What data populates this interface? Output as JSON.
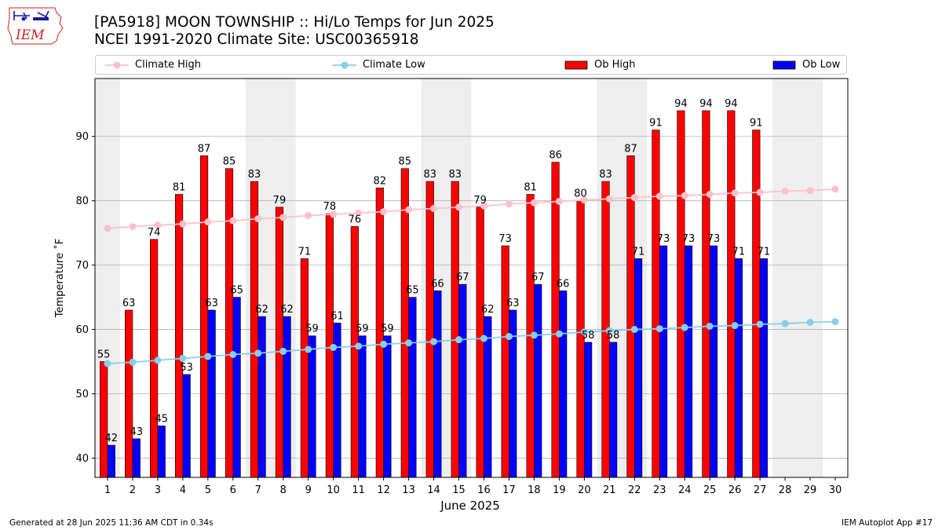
{
  "header": {
    "title_line1": "[PA5918] MOON TOWNSHIP :: Hi/Lo Temps for Jun 2025",
    "title_line2": "NCEI 1991-2020 Climate Site: USC00365918",
    "logo_text": "IEM"
  },
  "footer": {
    "left": "Generated at 28 Jun 2025 11:36 AM CDT in 0.34s",
    "right": "IEM Autoplot App #17"
  },
  "colors": {
    "ob_high": "#ff0000",
    "ob_low": "#0000ff",
    "climate_high": "#ffc0cb",
    "climate_low": "#87ceeb",
    "weekend_shade": "#eeeeee",
    "grid": "#b0b0b0"
  },
  "chart_data": {
    "type": "bar",
    "title": "[PA5918] MOON TOWNSHIP :: Hi/Lo Temps for Jun 2025",
    "xlabel": "June 2025",
    "ylabel": "Temperature ˚F",
    "ylim": [
      37,
      99
    ],
    "yticks": [
      40,
      50,
      60,
      70,
      80,
      90
    ],
    "grid": "horizontal",
    "legend_position": "top",
    "categories": [
      "1",
      "2",
      "3",
      "4",
      "5",
      "6",
      "7",
      "8",
      "9",
      "10",
      "11",
      "12",
      "13",
      "14",
      "15",
      "16",
      "17",
      "18",
      "19",
      "20",
      "21",
      "22",
      "23",
      "24",
      "25",
      "26",
      "27",
      "28",
      "29",
      "30"
    ],
    "weekend_days": [
      1,
      7,
      8,
      14,
      15,
      21,
      22,
      28,
      29
    ],
    "series": [
      {
        "name": "Ob High",
        "kind": "bar",
        "values": [
          55,
          63,
          74,
          81,
          87,
          85,
          83,
          79,
          71,
          78,
          76,
          82,
          85,
          83,
          83,
          79,
          73,
          81,
          86,
          80,
          83,
          87,
          91,
          94,
          94,
          94,
          91,
          null,
          null,
          null
        ]
      },
      {
        "name": "Ob Low",
        "kind": "bar",
        "values": [
          42,
          43,
          45,
          53,
          63,
          65,
          62,
          62,
          59,
          61,
          59,
          59,
          65,
          66,
          67,
          62,
          63,
          67,
          66,
          58,
          58,
          71,
          73,
          73,
          73,
          71,
          71,
          null,
          null,
          null
        ]
      },
      {
        "name": "Climate High",
        "kind": "line",
        "values": [
          75.7,
          76.0,
          76.2,
          76.4,
          76.7,
          76.9,
          77.2,
          77.4,
          77.7,
          77.9,
          78.1,
          78.3,
          78.6,
          78.8,
          79.0,
          79.2,
          79.5,
          79.7,
          79.9,
          80.1,
          80.3,
          80.5,
          80.7,
          80.8,
          81.0,
          81.2,
          81.3,
          81.5,
          81.6,
          81.8
        ]
      },
      {
        "name": "Climate Low",
        "kind": "line",
        "values": [
          54.7,
          54.9,
          55.2,
          55.5,
          55.8,
          56.1,
          56.3,
          56.6,
          56.9,
          57.2,
          57.4,
          57.7,
          57.9,
          58.1,
          58.4,
          58.6,
          58.9,
          59.1,
          59.3,
          59.6,
          59.8,
          60.0,
          60.1,
          60.3,
          60.5,
          60.6,
          60.8,
          60.9,
          61.1,
          61.2
        ]
      }
    ]
  }
}
